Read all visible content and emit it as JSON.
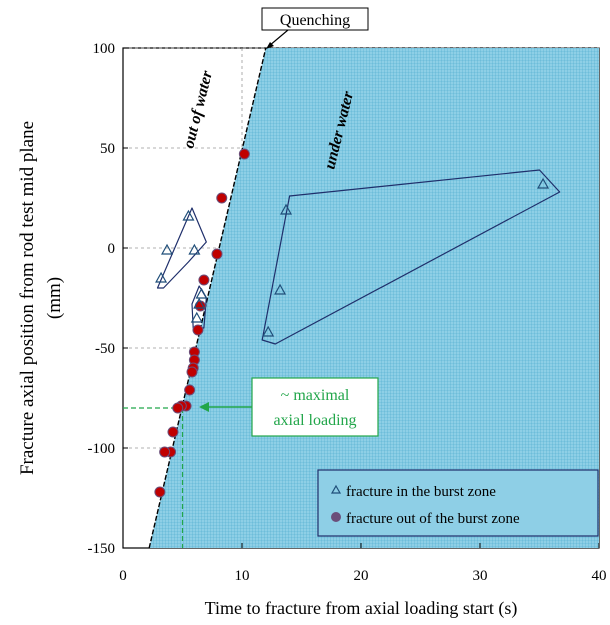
{
  "chart_data": {
    "type": "scatter",
    "title": "",
    "xlabel": "Time to fracture from axial loading start (s)",
    "ylabel_line1": "Fracture axial position from rod test mid plane",
    "ylabel_line2": "(mm)",
    "xlim": [
      0,
      40
    ],
    "ylim": [
      -150,
      100
    ],
    "x_ticks": [
      0,
      10,
      20,
      30,
      40
    ],
    "y_ticks": [
      100,
      50,
      0,
      -50,
      -100,
      -150
    ],
    "grid": "dashed reference lines",
    "colors": {
      "under_water_fill": "#8ecfe6",
      "grid_mesh": "#4aa9cc",
      "burst_marker": "#1f4e79",
      "outside_marker_fill": "#c00000",
      "outside_marker_edge": "#6b4e7a",
      "annotation_green": "#22a64a",
      "outline": "#1f2f6b"
    },
    "regions": [
      {
        "label": "out of water"
      },
      {
        "label": "under water"
      }
    ],
    "boundary_line": [
      [
        2.2,
        -150
      ],
      [
        12,
        100
      ]
    ],
    "annotations": {
      "quenching": "Quenching",
      "max_loading_line1": "~ maximal",
      "max_loading_line2": "axial loading",
      "max_loading_point": [
        5,
        -80
      ]
    },
    "series": [
      {
        "name": "fracture in the burst zone",
        "marker": "triangle-open",
        "points": [
          [
            3.2,
            -15
          ],
          [
            3.7,
            -1
          ],
          [
            5.5,
            16
          ],
          [
            6.0,
            -1
          ],
          [
            6.6,
            -23
          ],
          [
            6.4,
            -28
          ],
          [
            6.2,
            -35
          ],
          [
            13.7,
            19
          ],
          [
            13.2,
            -21
          ],
          [
            12.2,
            -42
          ],
          [
            35.3,
            32
          ]
        ]
      },
      {
        "name": "fracture out of the burst zone",
        "marker": "circle-filled",
        "points": [
          [
            10.2,
            47
          ],
          [
            8.3,
            25
          ],
          [
            7.9,
            -3
          ],
          [
            6.8,
            -16
          ],
          [
            6.5,
            -29
          ],
          [
            6.3,
            -41
          ],
          [
            6.0,
            -52
          ],
          [
            6.0,
            -56
          ],
          [
            5.9,
            -60
          ],
          [
            5.8,
            -62
          ],
          [
            5.6,
            -71
          ],
          [
            5.3,
            -79
          ],
          [
            4.9,
            -79
          ],
          [
            4.6,
            -80
          ],
          [
            4.2,
            -92
          ],
          [
            4.0,
            -102
          ],
          [
            3.5,
            -102
          ],
          [
            3.1,
            -122
          ]
        ]
      }
    ],
    "clusters": [
      {
        "label": "out-of-water triangles"
      },
      {
        "label": "narrow triangles"
      },
      {
        "label": "under-water triangles"
      }
    ],
    "legend": {
      "position": "bottom-right"
    }
  }
}
